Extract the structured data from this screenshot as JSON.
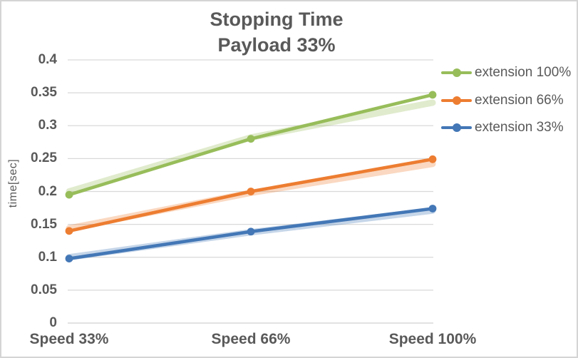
{
  "window": {
    "background": "#FFFFFF",
    "border_color": "#D4D4D4",
    "text_color": "#595959"
  },
  "chart_data": {
    "type": "line",
    "title": "Stopping Time",
    "subtitle": "Payload 33%",
    "ylabel": "time[sec]",
    "xlabel": "",
    "categories": [
      "Speed 33%",
      "Speed 66%",
      "Speed 100%"
    ],
    "series": [
      {
        "name": "extension 100%",
        "color": "#97BD5A",
        "values": [
          0.195,
          0.28,
          0.347
        ],
        "shadow_values": [
          0.2,
          0.282,
          0.335
        ]
      },
      {
        "name": "extension 66%",
        "color": "#ED7D31",
        "values": [
          0.14,
          0.2,
          0.249
        ],
        "shadow_values": [
          0.144,
          0.198,
          0.242
        ]
      },
      {
        "name": "extension 33%",
        "color": "#4377B6",
        "values": [
          0.098,
          0.139,
          0.174
        ],
        "shadow_values": [
          0.1,
          0.138,
          0.171
        ]
      }
    ],
    "ylim": [
      0,
      0.4
    ],
    "ytick_step": 0.05,
    "ytick_labels": [
      "0.4",
      "0.35",
      "0.3",
      "0.25",
      "0.2",
      "0.15",
      "0.1",
      "0.05",
      "0"
    ],
    "grid": true,
    "gridline_color": "#D9D9D9",
    "legend_position": "right",
    "marker": "circle"
  }
}
